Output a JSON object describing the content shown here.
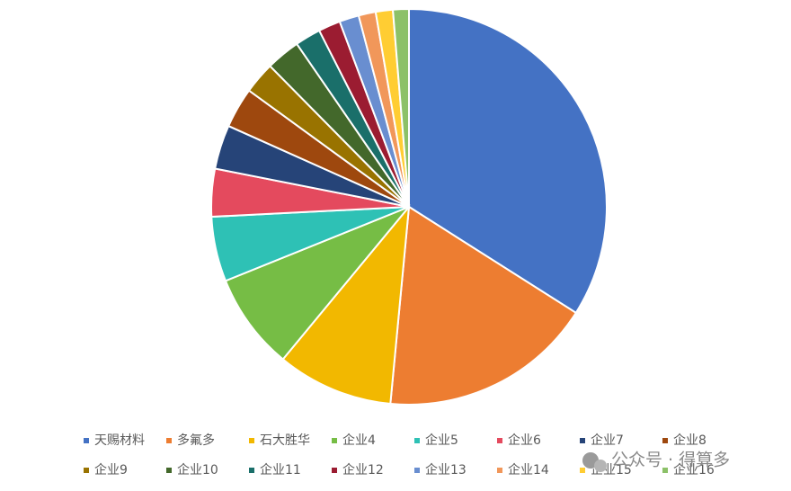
{
  "chart_data": {
    "type": "pie",
    "categories": [
      "天赐材料",
      "多氟多",
      "石大胜华",
      "企业4",
      "企业5",
      "企业6",
      "企业7",
      "企业8",
      "企业9",
      "企业10",
      "企业11",
      "企业12",
      "企业13",
      "企业14",
      "企业15",
      "企业16"
    ],
    "values": [
      34,
      17.5,
      9.5,
      7.9,
      5.3,
      3.9,
      3.6,
      3.3,
      2.6,
      2.8,
      2.1,
      1.8,
      1.6,
      1.4,
      1.4,
      1.3
    ],
    "colors": [
      "#4472c4",
      "#ed7d31",
      "#f2b800",
      "#76bd45",
      "#2ec1b5",
      "#e44a5e",
      "#264478",
      "#9e480e",
      "#997300",
      "#43682b",
      "#1a6f6a",
      "#9b1c31",
      "#698ed0",
      "#f1975a",
      "#ffcd33",
      "#8cc168"
    ],
    "legend": "bottom",
    "watermark": "公众号 · 得算多"
  }
}
